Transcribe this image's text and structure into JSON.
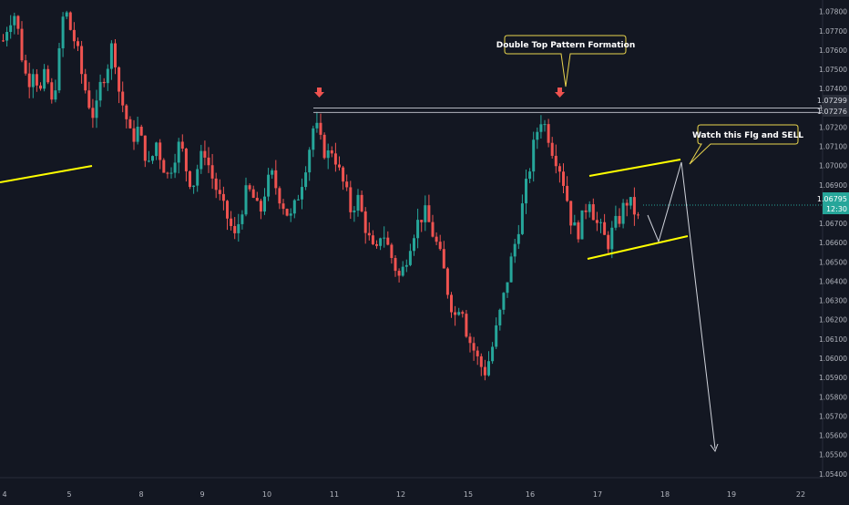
{
  "chart_data": {
    "type": "candlestick",
    "symbol_style": {
      "up_color": "#26a69a",
      "down_color": "#ef5350",
      "background": "#131722",
      "grid": false
    },
    "y_axis": {
      "position": "right",
      "ylim": [
        1.0538,
        1.0786
      ],
      "tick_labels": [
        "1.07800",
        "1.07700",
        "1.07600",
        "1.07500",
        "1.07400",
        "1.07300",
        "1.07200",
        "1.07100",
        "1.07000",
        "1.06900",
        "1.06700",
        "1.06600",
        "1.06500",
        "1.06400",
        "1.06300",
        "1.06200",
        "1.06100",
        "1.06000",
        "1.05900",
        "1.05800",
        "1.05700",
        "1.05600",
        "1.05500",
        "1.05400"
      ],
      "tick_values": [
        1.078,
        1.077,
        1.076,
        1.075,
        1.074,
        1.073,
        1.072,
        1.071,
        1.07,
        1.069,
        1.067,
        1.066,
        1.065,
        1.064,
        1.063,
        1.062,
        1.061,
        1.06,
        1.059,
        1.058,
        1.057,
        1.056,
        1.055,
        1.054
      ]
    },
    "x_axis": {
      "tick_labels": [
        "4",
        "5",
        "8",
        "9",
        "10",
        "11",
        "12",
        "15",
        "16",
        "17",
        "18",
        "19",
        "22"
      ]
    },
    "price_levels": [
      {
        "label": "1.07299",
        "value": 1.07299,
        "color": "#787b86"
      },
      {
        "label": "1.07276",
        "value": 1.07276,
        "color": "#787b86"
      }
    ],
    "current_price": {
      "label": "1.06795",
      "value": 1.06795,
      "time_label": "12:30",
      "color": "#26a69a"
    },
    "annotations": [
      {
        "text": "Double Top Pattern Formation"
      },
      {
        "text": "Watch this Flg and SELL"
      }
    ],
    "series_shape": [
      1.0765,
      1.0776,
      1.0779,
      1.0758,
      1.0742,
      1.0752,
      1.0737,
      1.0749,
      1.0731,
      1.0752,
      1.0783,
      1.0771,
      1.0762,
      1.0745,
      1.0733,
      1.0724,
      1.0743,
      1.0751,
      1.0765,
      1.0738,
      1.0727,
      1.0713,
      1.0719,
      1.0709,
      1.0698,
      1.0713,
      1.0702,
      1.0694,
      1.0705,
      1.0712,
      1.0698,
      1.0689,
      1.0701,
      1.0708,
      1.0696,
      1.0687,
      1.0678,
      1.0671,
      1.0662,
      1.0677,
      1.0688,
      1.0683,
      1.0674,
      1.0689,
      1.0695,
      1.0686,
      1.0679,
      1.0672,
      1.0681,
      1.0693,
      1.0707,
      1.0723,
      1.0712,
      1.0705,
      1.0709,
      1.0697,
      1.0688,
      1.0676,
      1.0684,
      1.0672,
      1.0661,
      1.0652,
      1.0668,
      1.0658,
      1.0649,
      1.0641,
      1.0652,
      1.0664,
      1.0671,
      1.0676,
      1.0668,
      1.0659,
      1.0648,
      1.0632,
      1.0622,
      1.0631,
      1.0612,
      1.0605,
      1.0597,
      1.0593,
      1.0604,
      1.0618,
      1.0632,
      1.0648,
      1.0662,
      1.0678,
      1.0695,
      1.0712,
      1.0725,
      1.0719,
      1.0708,
      1.0701,
      1.0689,
      1.0672,
      1.0664,
      1.0674,
      1.0684,
      1.0671,
      1.0666,
      1.0659,
      1.0668,
      1.0673,
      1.0682,
      1.0679,
      1.0672
    ]
  }
}
